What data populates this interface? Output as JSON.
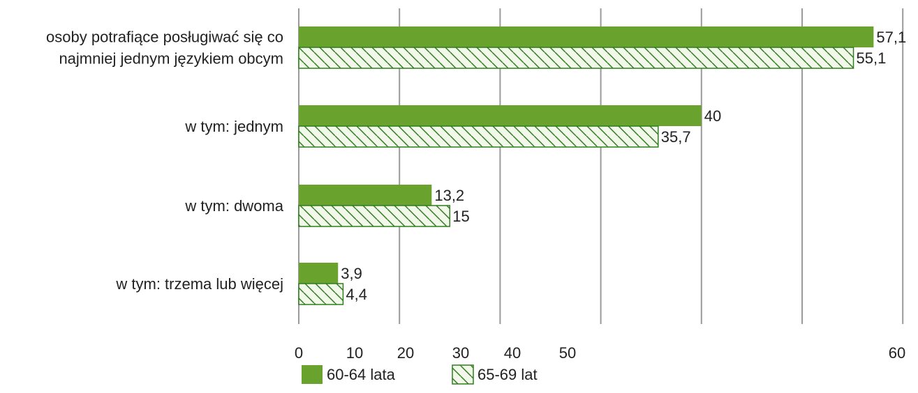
{
  "chart_data": {
    "type": "bar",
    "orientation": "horizontal",
    "categories": [
      [
        "osoby potrafiące posługiwać się co",
        "najmniej jednym językiem obcym"
      ],
      [
        "w tym: jednym"
      ],
      [
        "w tym: dwoma"
      ],
      [
        "w tym: trzema lub więcej"
      ]
    ],
    "series": [
      {
        "name": "60-64 lata",
        "values": [
          57.1,
          40,
          13.2,
          3.9
        ],
        "value_labels": [
          "57,1",
          "40",
          "13,2",
          "3,9"
        ],
        "color": "#6aa22e",
        "pattern": "solid"
      },
      {
        "name": "65-69 lat",
        "values": [
          55.1,
          35.7,
          15,
          4.4
        ],
        "value_labels": [
          "55,1",
          "35,7",
          "15",
          "4,4"
        ],
        "color": "#2e7d1e",
        "pattern": "hatch"
      }
    ],
    "xticks": [
      {
        "label": "0",
        "value": 0
      },
      {
        "label": "10",
        "value": 10
      },
      {
        "label": "20",
        "value": 20
      },
      {
        "label": "30",
        "value": 30
      },
      {
        "label": "40",
        "value": 40
      },
      {
        "label": "50",
        "value": 50
      },
      {
        "label": "60",
        "value": 60
      }
    ],
    "xlim": [
      0,
      60
    ],
    "grid": true,
    "legend_position": "bottom-left",
    "title": "",
    "xlabel": "",
    "ylabel": ""
  }
}
